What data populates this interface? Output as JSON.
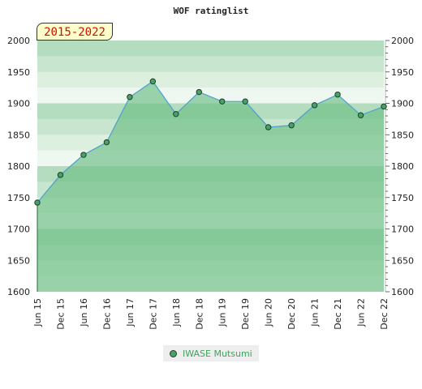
{
  "chart_data": {
    "type": "area",
    "title": "WOF ratinglist",
    "period_label": "2015-2022",
    "x": [
      "Jun 15",
      "Dec 15",
      "Jun 16",
      "Dec 16",
      "Jun 17",
      "Dec 17",
      "Jun 18",
      "Dec 18",
      "Jun 19",
      "Dec 19",
      "Jun 20",
      "Dec 20",
      "Jun 21",
      "Dec 21",
      "Jun 22",
      "Dec 22"
    ],
    "series": [
      {
        "name": "IWASE Mutsumi",
        "values": [
          1742,
          1786,
          1818,
          1838,
          1910,
          1935,
          1883,
          1918,
          1903,
          1903,
          1862,
          1865,
          1897,
          1914,
          1881,
          1895
        ]
      }
    ],
    "ylim": [
      1600,
      2000
    ],
    "yticks": [
      1600,
      1650,
      1700,
      1750,
      1800,
      1850,
      1900,
      1950,
      2000
    ],
    "grid": "horizontal bands",
    "legend": "bottom-center",
    "colors": {
      "area": "#6cbf84",
      "line": "#4b9fd0",
      "marker": "#4aa06a",
      "legend_text": "#3ea35b",
      "badge_text": "#cc1100"
    }
  }
}
